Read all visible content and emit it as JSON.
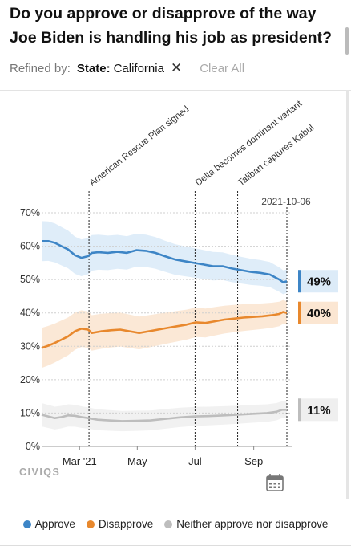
{
  "title_line1": "Do you approve or disapprove of the way",
  "title_line2": "Joe Biden is handling his job as president?",
  "filter": {
    "refined_label": "Refined by:",
    "chip_key": "State:",
    "chip_value": "California",
    "close_glyph": "✕",
    "clear_label": "Clear All"
  },
  "brand": "CIVIQS",
  "calendar_icon": "calendar-icon",
  "colors": {
    "approve": "#3d85c6",
    "disapprove": "#e8882d",
    "neither": "#bdbdbd",
    "approve_band": "#dcebf8",
    "disapprove_band": "#fbe6d2",
    "neither_band": "#efefef"
  },
  "chart_data": {
    "type": "line",
    "x_ticks": [
      "Mar '21",
      "May",
      "Jul",
      "Sep"
    ],
    "x_tick_dates": [
      "2021-03-01",
      "2021-05-01",
      "2021-07-01",
      "2021-09-01"
    ],
    "x_range": [
      "2021-01-20",
      "2021-10-06"
    ],
    "ylim": [
      0,
      70
    ],
    "y_ticks": [
      "0%",
      "10%",
      "20%",
      "30%",
      "40%",
      "50%",
      "60%",
      "70%"
    ],
    "grid": true,
    "legend_position": "bottom",
    "annotations": [
      {
        "label": "American Rescue Plan signed",
        "date": "2021-03-11"
      },
      {
        "label": "Delta becomes dominant variant",
        "date": "2021-07-01"
      },
      {
        "label": "Taliban captures Kabul",
        "date": "2021-08-15"
      }
    ],
    "current_date_label": "2021-10-06",
    "current_date": "2021-10-06",
    "series": [
      {
        "name": "Approve",
        "end_label": "49%",
        "points": [
          [
            "2021-01-20",
            61.5
          ],
          [
            "2021-01-27",
            61.5
          ],
          [
            "2021-02-03",
            61
          ],
          [
            "2021-02-10",
            60
          ],
          [
            "2021-02-17",
            59
          ],
          [
            "2021-02-24",
            57.3
          ],
          [
            "2021-03-03",
            56.5
          ],
          [
            "2021-03-10",
            57
          ],
          [
            "2021-03-14",
            58
          ],
          [
            "2021-03-21",
            58.2
          ],
          [
            "2021-03-31",
            58
          ],
          [
            "2021-04-10",
            58.3
          ],
          [
            "2021-04-20",
            58
          ],
          [
            "2021-04-30",
            58.8
          ],
          [
            "2021-05-10",
            58.6
          ],
          [
            "2021-05-20",
            58
          ],
          [
            "2021-05-30",
            57
          ],
          [
            "2021-06-10",
            56
          ],
          [
            "2021-06-20",
            55.5
          ],
          [
            "2021-06-30",
            55
          ],
          [
            "2021-07-10",
            54.5
          ],
          [
            "2021-07-20",
            54
          ],
          [
            "2021-07-30",
            54
          ],
          [
            "2021-08-09",
            53.3
          ],
          [
            "2021-08-19",
            52.8
          ],
          [
            "2021-08-29",
            52.3
          ],
          [
            "2021-09-08",
            52
          ],
          [
            "2021-09-18",
            51.5
          ],
          [
            "2021-09-28",
            50
          ],
          [
            "2021-10-02",
            49.2
          ],
          [
            "2021-10-06",
            49.5
          ]
        ]
      },
      {
        "name": "Disapprove",
        "end_label": "40%",
        "points": [
          [
            "2021-01-20",
            29.5
          ],
          [
            "2021-01-27",
            30.2
          ],
          [
            "2021-02-03",
            31
          ],
          [
            "2021-02-10",
            32
          ],
          [
            "2021-02-17",
            33
          ],
          [
            "2021-02-24",
            34.5
          ],
          [
            "2021-03-03",
            35.3
          ],
          [
            "2021-03-10",
            35
          ],
          [
            "2021-03-14",
            34
          ],
          [
            "2021-03-24",
            34.5
          ],
          [
            "2021-04-03",
            34.8
          ],
          [
            "2021-04-13",
            35
          ],
          [
            "2021-04-23",
            34.5
          ],
          [
            "2021-05-03",
            34
          ],
          [
            "2021-05-13",
            34.5
          ],
          [
            "2021-05-23",
            35
          ],
          [
            "2021-06-02",
            35.5
          ],
          [
            "2021-06-12",
            36
          ],
          [
            "2021-06-22",
            36.5
          ],
          [
            "2021-07-02",
            37.2
          ],
          [
            "2021-07-12",
            37
          ],
          [
            "2021-07-22",
            37.5
          ],
          [
            "2021-08-01",
            38
          ],
          [
            "2021-08-11",
            38.3
          ],
          [
            "2021-08-21",
            38.6
          ],
          [
            "2021-08-31",
            38.8
          ],
          [
            "2021-09-10",
            39
          ],
          [
            "2021-09-20",
            39.3
          ],
          [
            "2021-09-28",
            39.7
          ],
          [
            "2021-10-02",
            40.3
          ],
          [
            "2021-10-06",
            40
          ]
        ]
      },
      {
        "name": "Neither approve nor disapprove",
        "end_label": "11%",
        "points": [
          [
            "2021-01-20",
            9.5
          ],
          [
            "2021-01-27",
            9
          ],
          [
            "2021-02-03",
            8.5
          ],
          [
            "2021-02-10",
            8.8
          ],
          [
            "2021-02-17",
            9.3
          ],
          [
            "2021-02-24",
            9.2
          ],
          [
            "2021-03-03",
            8.8
          ],
          [
            "2021-03-10",
            8.5
          ],
          [
            "2021-03-20",
            8
          ],
          [
            "2021-04-01",
            7.8
          ],
          [
            "2021-04-15",
            7.6
          ],
          [
            "2021-05-01",
            7.7
          ],
          [
            "2021-05-15",
            7.8
          ],
          [
            "2021-06-01",
            8.3
          ],
          [
            "2021-06-15",
            8.7
          ],
          [
            "2021-07-01",
            9
          ],
          [
            "2021-07-15",
            9.1
          ],
          [
            "2021-08-01",
            9.3
          ],
          [
            "2021-08-15",
            9.5
          ],
          [
            "2021-09-01",
            9.8
          ],
          [
            "2021-09-15",
            10
          ],
          [
            "2021-09-25",
            10.4
          ],
          [
            "2021-10-01",
            11
          ],
          [
            "2021-10-06",
            11
          ]
        ]
      }
    ]
  },
  "legend": [
    {
      "label": "Approve",
      "color": "#3d85c6"
    },
    {
      "label": "Disapprove",
      "color": "#e8882d"
    },
    {
      "label": "Neither approve nor disapprove",
      "color": "#bdbdbd"
    }
  ]
}
